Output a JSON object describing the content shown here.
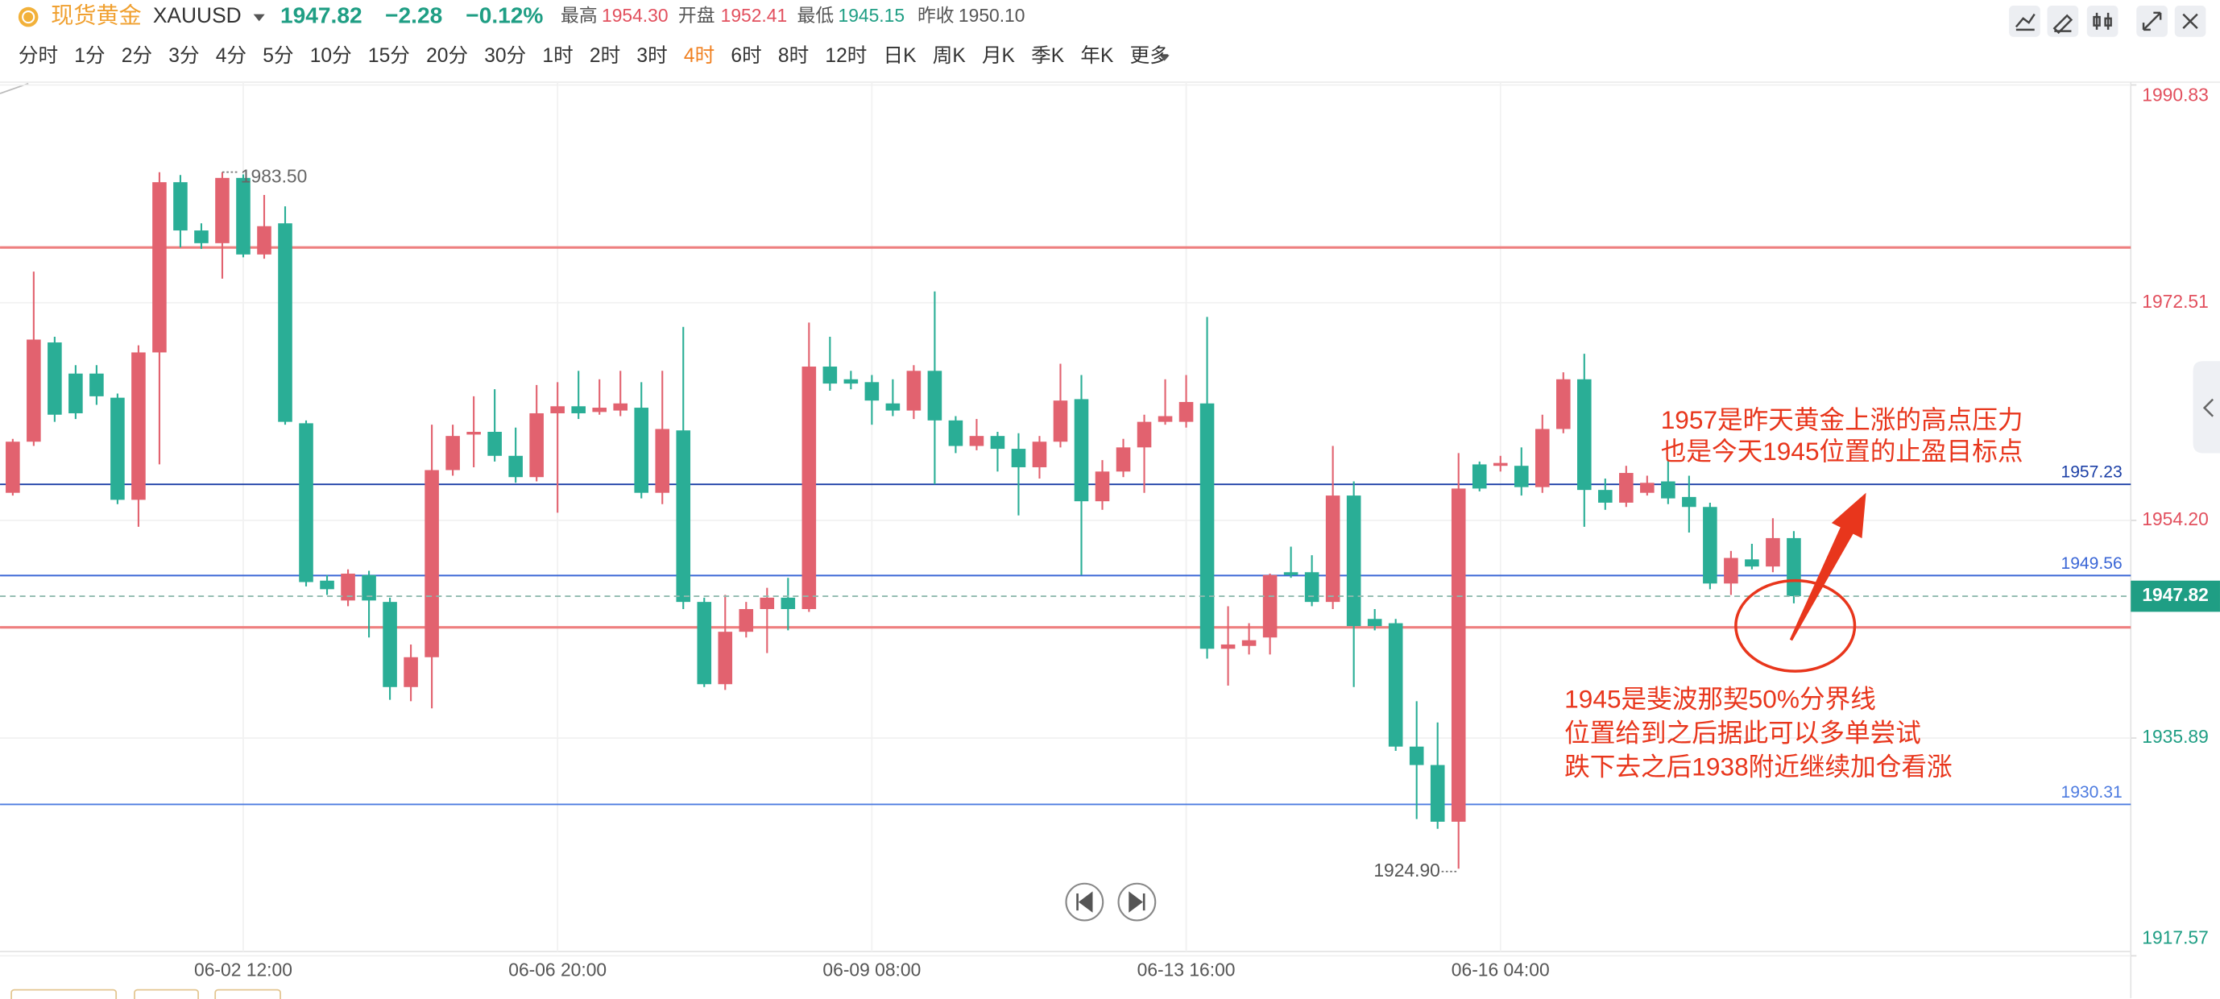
{
  "header": {
    "name": "现货黄金",
    "symbol": "XAUUSD",
    "price": "1947.82",
    "change": "−2.28",
    "change_pct": "−0.12%",
    "high_label": "最高",
    "high": "1954.30",
    "open_label": "开盘",
    "open": "1952.41",
    "low_label": "最低",
    "low": "1945.15",
    "prev_close_label": "昨收",
    "prev_close": "1950.10"
  },
  "timeframes": {
    "items": [
      "分时",
      "1分",
      "2分",
      "3分",
      "4分",
      "5分",
      "10分",
      "15分",
      "20分",
      "30分",
      "1时",
      "2时",
      "3时",
      "4时",
      "6时",
      "8时",
      "12时",
      "日K",
      "周K",
      "月K",
      "季K",
      "年K",
      "更多"
    ],
    "active_index": 13
  },
  "chart_data": {
    "type": "candlestick",
    "categories": [
      null,
      null,
      null,
      null,
      null,
      null,
      null,
      null,
      null,
      null,
      null,
      "06-02 12:00",
      null,
      null,
      null,
      null,
      null,
      null,
      null,
      null,
      null,
      null,
      null,
      null,
      null,
      null,
      "06-06 20:00",
      null,
      null,
      null,
      null,
      null,
      null,
      null,
      null,
      null,
      null,
      null,
      null,
      null,
      null,
      "06-09 08:00",
      null,
      null,
      null,
      null,
      null,
      null,
      null,
      null,
      null,
      null,
      null,
      null,
      null,
      null,
      "06-13 16:00",
      null,
      null,
      null,
      null,
      null,
      null,
      null,
      null,
      null,
      null,
      null,
      null,
      null,
      null,
      "06-16 04:00",
      null,
      null,
      null,
      null,
      null,
      null,
      null,
      null,
      null,
      null,
      null,
      null,
      null,
      null
    ],
    "open": [
      1956.52,
      1960.82,
      1969.17,
      1966.55,
      1966.55,
      1964.52,
      1955.93,
      1968.33,
      1982.65,
      1978.59,
      1977.52,
      1983.01,
      1976.57,
      1979.19,
      1962.37,
      1949.13,
      1947.46,
      1949.6,
      1947.34,
      1940.18,
      1942.69,
      1958.43,
      1961.42,
      1961.65,
      1959.63,
      1957.84,
      1963.21,
      1963.8,
      1963.32,
      1963.44,
      1963.68,
      1956.52,
      1961.77,
      1947.34,
      1940.42,
      1944.83,
      1946.74,
      1947.7,
      1946.74,
      1967.14,
      1966.07,
      1965.83,
      1964.04,
      1963.44,
      1966.78,
      1962.61,
      1960.46,
      1961.3,
      1960.22,
      1958.67,
      1960.82,
      1964.4,
      1955.81,
      1958.31,
      1960.34,
      1962.49,
      1962.49,
      1964.04,
      1943.4,
      1943.64,
      1944.35,
      1949.84,
      1949.84,
      1947.34,
      1956.29,
      1945.91,
      1945.55,
      1935.17,
      1933.62,
      1928.85,
      1958.91,
      1958.79,
      1958.79,
      1957.0,
      1961.89,
      1966.07,
      1956.76,
      1955.69,
      1956.52,
      1957.48,
      1956.17,
      1955.33,
      1948.89,
      1950.92,
      1950.32,
      1952.71
    ],
    "high": [
      1961.06,
      1975.13,
      1969.65,
      1967.26,
      1967.26,
      1964.87,
      1968.93,
      1983.49,
      1983.25,
      1979.19,
      1983.5,
      1983.3,
      1981.58,
      1980.62,
      1962.61,
      1949.6,
      1950.08,
      1949.96,
      1947.7,
      1943.76,
      1962.25,
      1962.25,
      1964.64,
      1965.23,
      1962.01,
      1965.59,
      1965.83,
      1966.78,
      1966.07,
      1966.78,
      1965.83,
      1966.78,
      1970.48,
      1947.7,
      1947.93,
      1947.34,
      1948.53,
      1949.37,
      1970.84,
      1969.65,
      1966.78,
      1966.43,
      1966.07,
      1967.26,
      1973.46,
      1962.97,
      1962.73,
      1961.65,
      1961.53,
      1961.3,
      1967.38,
      1966.43,
      1959.27,
      1961.06,
      1963.09,
      1966.07,
      1966.43,
      1971.32,
      1946.98,
      1945.55,
      1949.72,
      1951.99,
      1951.27,
      1960.46,
      1957.48,
      1946.74,
      1945.91,
      1938.99,
      1937.2,
      1959.86,
      1959.15,
      1959.63,
      1960.34,
      1963.09,
      1966.66,
      1968.22,
      1957.72,
      1958.79,
      1957.96,
      1959.27,
      1957.96,
      1955.69,
      1951.63,
      1952.23,
      1954.38,
      1953.3
    ],
    "low": [
      1956.29,
      1960.46,
      1962.49,
      1962.73,
      1963.92,
      1955.57,
      1953.66,
      1958.91,
      1977.16,
      1977.04,
      1974.54,
      1976.33,
      1976.21,
      1962.25,
      1948.65,
      1947.93,
      1946.98,
      1944.35,
      1939.11,
      1938.99,
      1938.39,
      1957.96,
      1958.67,
      1959.15,
      1957.36,
      1957.48,
      1954.85,
      1962.73,
      1963.09,
      1962.97,
      1956.05,
      1955.57,
      1946.74,
      1940.18,
      1939.94,
      1944.35,
      1943.04,
      1944.95,
      1946.5,
      1965.11,
      1965.23,
      1962.25,
      1962.97,
      1962.73,
      1957.24,
      1959.86,
      1960.1,
      1958.31,
      1954.62,
      1957.72,
      1960.34,
      1949.6,
      1955.09,
      1957.84,
      1956.52,
      1962.25,
      1962.01,
      1942.57,
      1940.3,
      1942.92,
      1942.92,
      1949.37,
      1946.98,
      1946.74,
      1940.18,
      1944.95,
      1934.81,
      1929.08,
      1928.25,
      1924.9,
      1956.64,
      1958.31,
      1956.29,
      1956.52,
      1961.53,
      1953.66,
      1955.09,
      1955.33,
      1956.29,
      1955.57,
      1953.18,
      1948.41,
      1947.93,
      1950.08,
      1949.84,
      1947.22
    ],
    "close": [
      1960.82,
      1969.41,
      1963.09,
      1963.21,
      1964.64,
      1955.93,
      1968.33,
      1982.65,
      1978.59,
      1977.52,
      1983.01,
      1976.57,
      1978.95,
      1962.49,
      1949.01,
      1948.41,
      1949.72,
      1947.46,
      1940.18,
      1942.69,
      1958.43,
      1961.3,
      1961.65,
      1959.63,
      1957.84,
      1963.21,
      1963.8,
      1963.21,
      1963.68,
      1964.04,
      1956.52,
      1961.89,
      1947.34,
      1940.42,
      1944.83,
      1946.74,
      1947.7,
      1946.74,
      1967.14,
      1965.71,
      1965.71,
      1964.28,
      1963.44,
      1966.78,
      1962.61,
      1960.46,
      1961.3,
      1960.22,
      1958.67,
      1960.82,
      1964.28,
      1955.81,
      1958.31,
      1960.34,
      1962.49,
      1962.97,
      1964.16,
      1943.4,
      1943.76,
      1944.12,
      1949.6,
      1949.6,
      1947.34,
      1956.29,
      1945.31,
      1945.31,
      1935.17,
      1933.62,
      1928.85,
      1956.88,
      1956.88,
      1959.03,
      1957.0,
      1961.89,
      1966.07,
      1956.76,
      1955.69,
      1958.19,
      1957.36,
      1956.05,
      1955.33,
      1948.89,
      1951.04,
      1950.32,
      1952.71,
      1947.82
    ],
    "up_color": "#e2626f",
    "down_color": "#2aae96",
    "ylim": [
      1917.57,
      1990.83
    ],
    "yticks": [
      1917.57,
      1935.89,
      {
        "value": 1954.2,
        "label": "1954.20"
      },
      1972.51,
      1990.83
    ],
    "grid": true,
    "current_price": 1947.82,
    "labeled_lines": [
      {
        "value": 1957.23,
        "color": "#1b3fa6"
      },
      {
        "value": 1949.56,
        "color": "#3a66d6"
      },
      {
        "value": 1930.31,
        "color": "#4d7be0"
      }
    ],
    "lines": [
      {
        "value": 1977.16,
        "color": "#ee7f7f"
      },
      {
        "value": 1945.2,
        "color": "#ee7f7f"
      }
    ],
    "high_mark": {
      "value": 1983.5,
      "label": "1983.50"
    },
    "low_mark": {
      "value": 1924.9,
      "label": "1924.90"
    },
    "annotations": [
      "1957是昨天黄金上涨的高点压力",
      "也是今天1945位置的止盈目标点",
      "1945是斐波那契50%分界线",
      "位置给到之后据此可以多单尝试",
      "跌下去之后1938附近继续加仓看涨"
    ]
  }
}
